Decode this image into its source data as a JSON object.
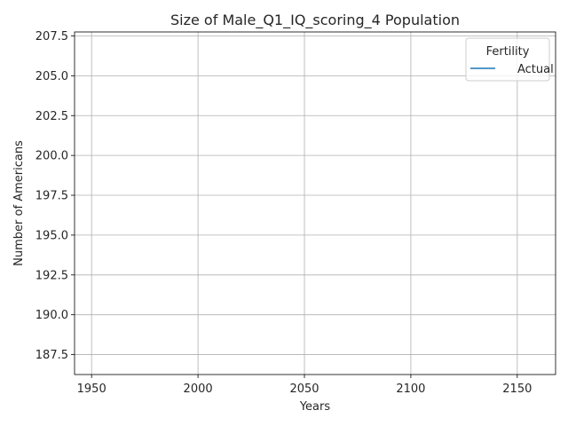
{
  "chart_data": {
    "type": "line",
    "title": "Size of Male_Q1_IQ_scoring_4 Population",
    "xlabel": "Years",
    "ylabel": "Number of Americans",
    "xlim": [
      1942,
      2168
    ],
    "ylim": [
      186.25,
      207.75
    ],
    "x_ticks": [
      1950,
      2000,
      2050,
      2100,
      2150
    ],
    "x_tick_labels": [
      "1950",
      "2000",
      "2050",
      "2100",
      "2150"
    ],
    "y_ticks": [
      187.5,
      190.0,
      192.5,
      195.0,
      197.5,
      200.0,
      202.5,
      205.0,
      207.5
    ],
    "y_tick_labels": [
      "187.5",
      "190.0",
      "192.5",
      "195.0",
      "197.5",
      "200.0",
      "202.5",
      "205.0",
      "207.5"
    ],
    "grid": true,
    "legend": {
      "title": "Fertility",
      "placement": "top-right",
      "entries": [
        {
          "label": "Actual",
          "color": "#1f77b4"
        }
      ]
    },
    "series": [
      {
        "name": "Actual",
        "color": "#1f77b4",
        "x": [],
        "y": []
      }
    ]
  }
}
